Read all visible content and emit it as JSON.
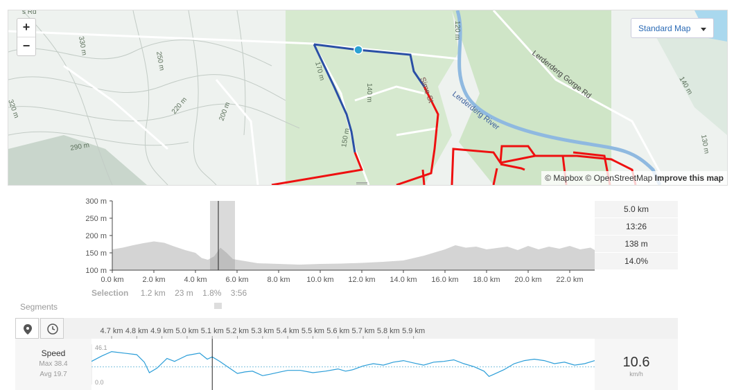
{
  "map": {
    "zoom_in": "+",
    "zoom_out": "−",
    "style_label": "Standard Map",
    "attrib_mapbox": "© Mapbox",
    "attrib_osm": "© OpenStreetMap",
    "attrib_improve": "Improve this map",
    "labels": {
      "road1": "Lerderderg Gorge Rd",
      "river": "Lerderderg River",
      "street": "Sime St",
      "c330": "330 m",
      "c250": "250 m",
      "c220": "220 m",
      "c200": "200 m",
      "c290": "290 m",
      "c320": "320 m",
      "c170": "170 m",
      "c150": "150 m",
      "c140": "140 m",
      "c120": "120 m",
      "c140b": "140 m",
      "c130": "130 m",
      "topleft": "s Rd"
    }
  },
  "elevation": {
    "y_ticks": [
      "300 m",
      "250 m",
      "200 m",
      "150 m",
      "100 m"
    ],
    "x_ticks": [
      "0.0 km",
      "2.0 km",
      "4.0 km",
      "6.0 km",
      "8.0 km",
      "10.0 km",
      "12.0 km",
      "14.0 km",
      "16.0 km",
      "18.0 km",
      "20.0 km",
      "22.0 km"
    ],
    "stats": [
      "5.0 km",
      "13:26",
      "138 m",
      "14.0%"
    ],
    "selection_label": "Selection",
    "selection_values": [
      "1.2 km",
      "23 m",
      "1.8%",
      "3:56"
    ],
    "segments_label": "Segments",
    "profile": [
      [
        0,
        160
      ],
      [
        0.5,
        165
      ],
      [
        1,
        172
      ],
      [
        1.5,
        178
      ],
      [
        2,
        183
      ],
      [
        2.5,
        179
      ],
      [
        3,
        168
      ],
      [
        3.5,
        158
      ],
      [
        4,
        150
      ],
      [
        4.3,
        135
      ],
      [
        4.6,
        130
      ],
      [
        4.9,
        140
      ],
      [
        5.2,
        165
      ],
      [
        5.5,
        150
      ],
      [
        5.8,
        132
      ],
      [
        6.5,
        125
      ],
      [
        7,
        120
      ],
      [
        8,
        118
      ],
      [
        9,
        116
      ],
      [
        10,
        118
      ],
      [
        11,
        119
      ],
      [
        12,
        121
      ],
      [
        13,
        124
      ],
      [
        14,
        128
      ],
      [
        15,
        142
      ],
      [
        16,
        160
      ],
      [
        16.5,
        172
      ],
      [
        17,
        165
      ],
      [
        17.5,
        168
      ],
      [
        18,
        160
      ],
      [
        19,
        168
      ],
      [
        19.5,
        158
      ],
      [
        20,
        170
      ],
      [
        20.5,
        160
      ],
      [
        21,
        168
      ],
      [
        21.5,
        162
      ],
      [
        22,
        170
      ],
      [
        22.5,
        160
      ],
      [
        23,
        165
      ],
      [
        23.2,
        158
      ]
    ]
  },
  "speed": {
    "title": "Speed",
    "max": "Max 38.4",
    "avg": "Avg 19.7",
    "ymax": "46.1",
    "ymin": "0.0",
    "value": "10.6",
    "unit": "km/h",
    "x_ticks": [
      "4.7 km",
      "4.8 km",
      "4.9 km",
      "5.0 km",
      "5.1 km",
      "5.2 km",
      "5.3 km",
      "5.4 km",
      "5.5 km",
      "5.6 km",
      "5.7 km",
      "5.8 km",
      "5.9 km"
    ],
    "series": [
      [
        4.62,
        27
      ],
      [
        4.66,
        34
      ],
      [
        4.7,
        40
      ],
      [
        4.75,
        38
      ],
      [
        4.8,
        36
      ],
      [
        4.83,
        26
      ],
      [
        4.85,
        12
      ],
      [
        4.88,
        18
      ],
      [
        4.92,
        31
      ],
      [
        4.95,
        27
      ],
      [
        5.0,
        35
      ],
      [
        5.05,
        38
      ],
      [
        5.08,
        30
      ],
      [
        5.1,
        33
      ],
      [
        5.13,
        27
      ],
      [
        5.16,
        20
      ],
      [
        5.2,
        11
      ],
      [
        5.23,
        13
      ],
      [
        5.26,
        14
      ],
      [
        5.3,
        8
      ],
      [
        5.33,
        10
      ],
      [
        5.37,
        13
      ],
      [
        5.4,
        15
      ],
      [
        5.45,
        15
      ],
      [
        5.5,
        12
      ],
      [
        5.55,
        14
      ],
      [
        5.6,
        17
      ],
      [
        5.63,
        14
      ],
      [
        5.66,
        16
      ],
      [
        5.7,
        21
      ],
      [
        5.74,
        24
      ],
      [
        5.78,
        22
      ],
      [
        5.82,
        26
      ],
      [
        5.86,
        28
      ],
      [
        5.9,
        25
      ],
      [
        5.94,
        22
      ],
      [
        5.98,
        26
      ],
      [
        6.02,
        27
      ],
      [
        6.06,
        29
      ],
      [
        6.1,
        24
      ],
      [
        6.14,
        20
      ],
      [
        6.18,
        14
      ],
      [
        6.2,
        7
      ],
      [
        6.22,
        10
      ],
      [
        6.26,
        16
      ],
      [
        6.3,
        24
      ],
      [
        6.34,
        28
      ],
      [
        6.38,
        30
      ],
      [
        6.42,
        28
      ],
      [
        6.46,
        24
      ],
      [
        6.5,
        26
      ],
      [
        6.54,
        22
      ],
      [
        6.58,
        24
      ],
      [
        6.62,
        28
      ]
    ]
  }
}
